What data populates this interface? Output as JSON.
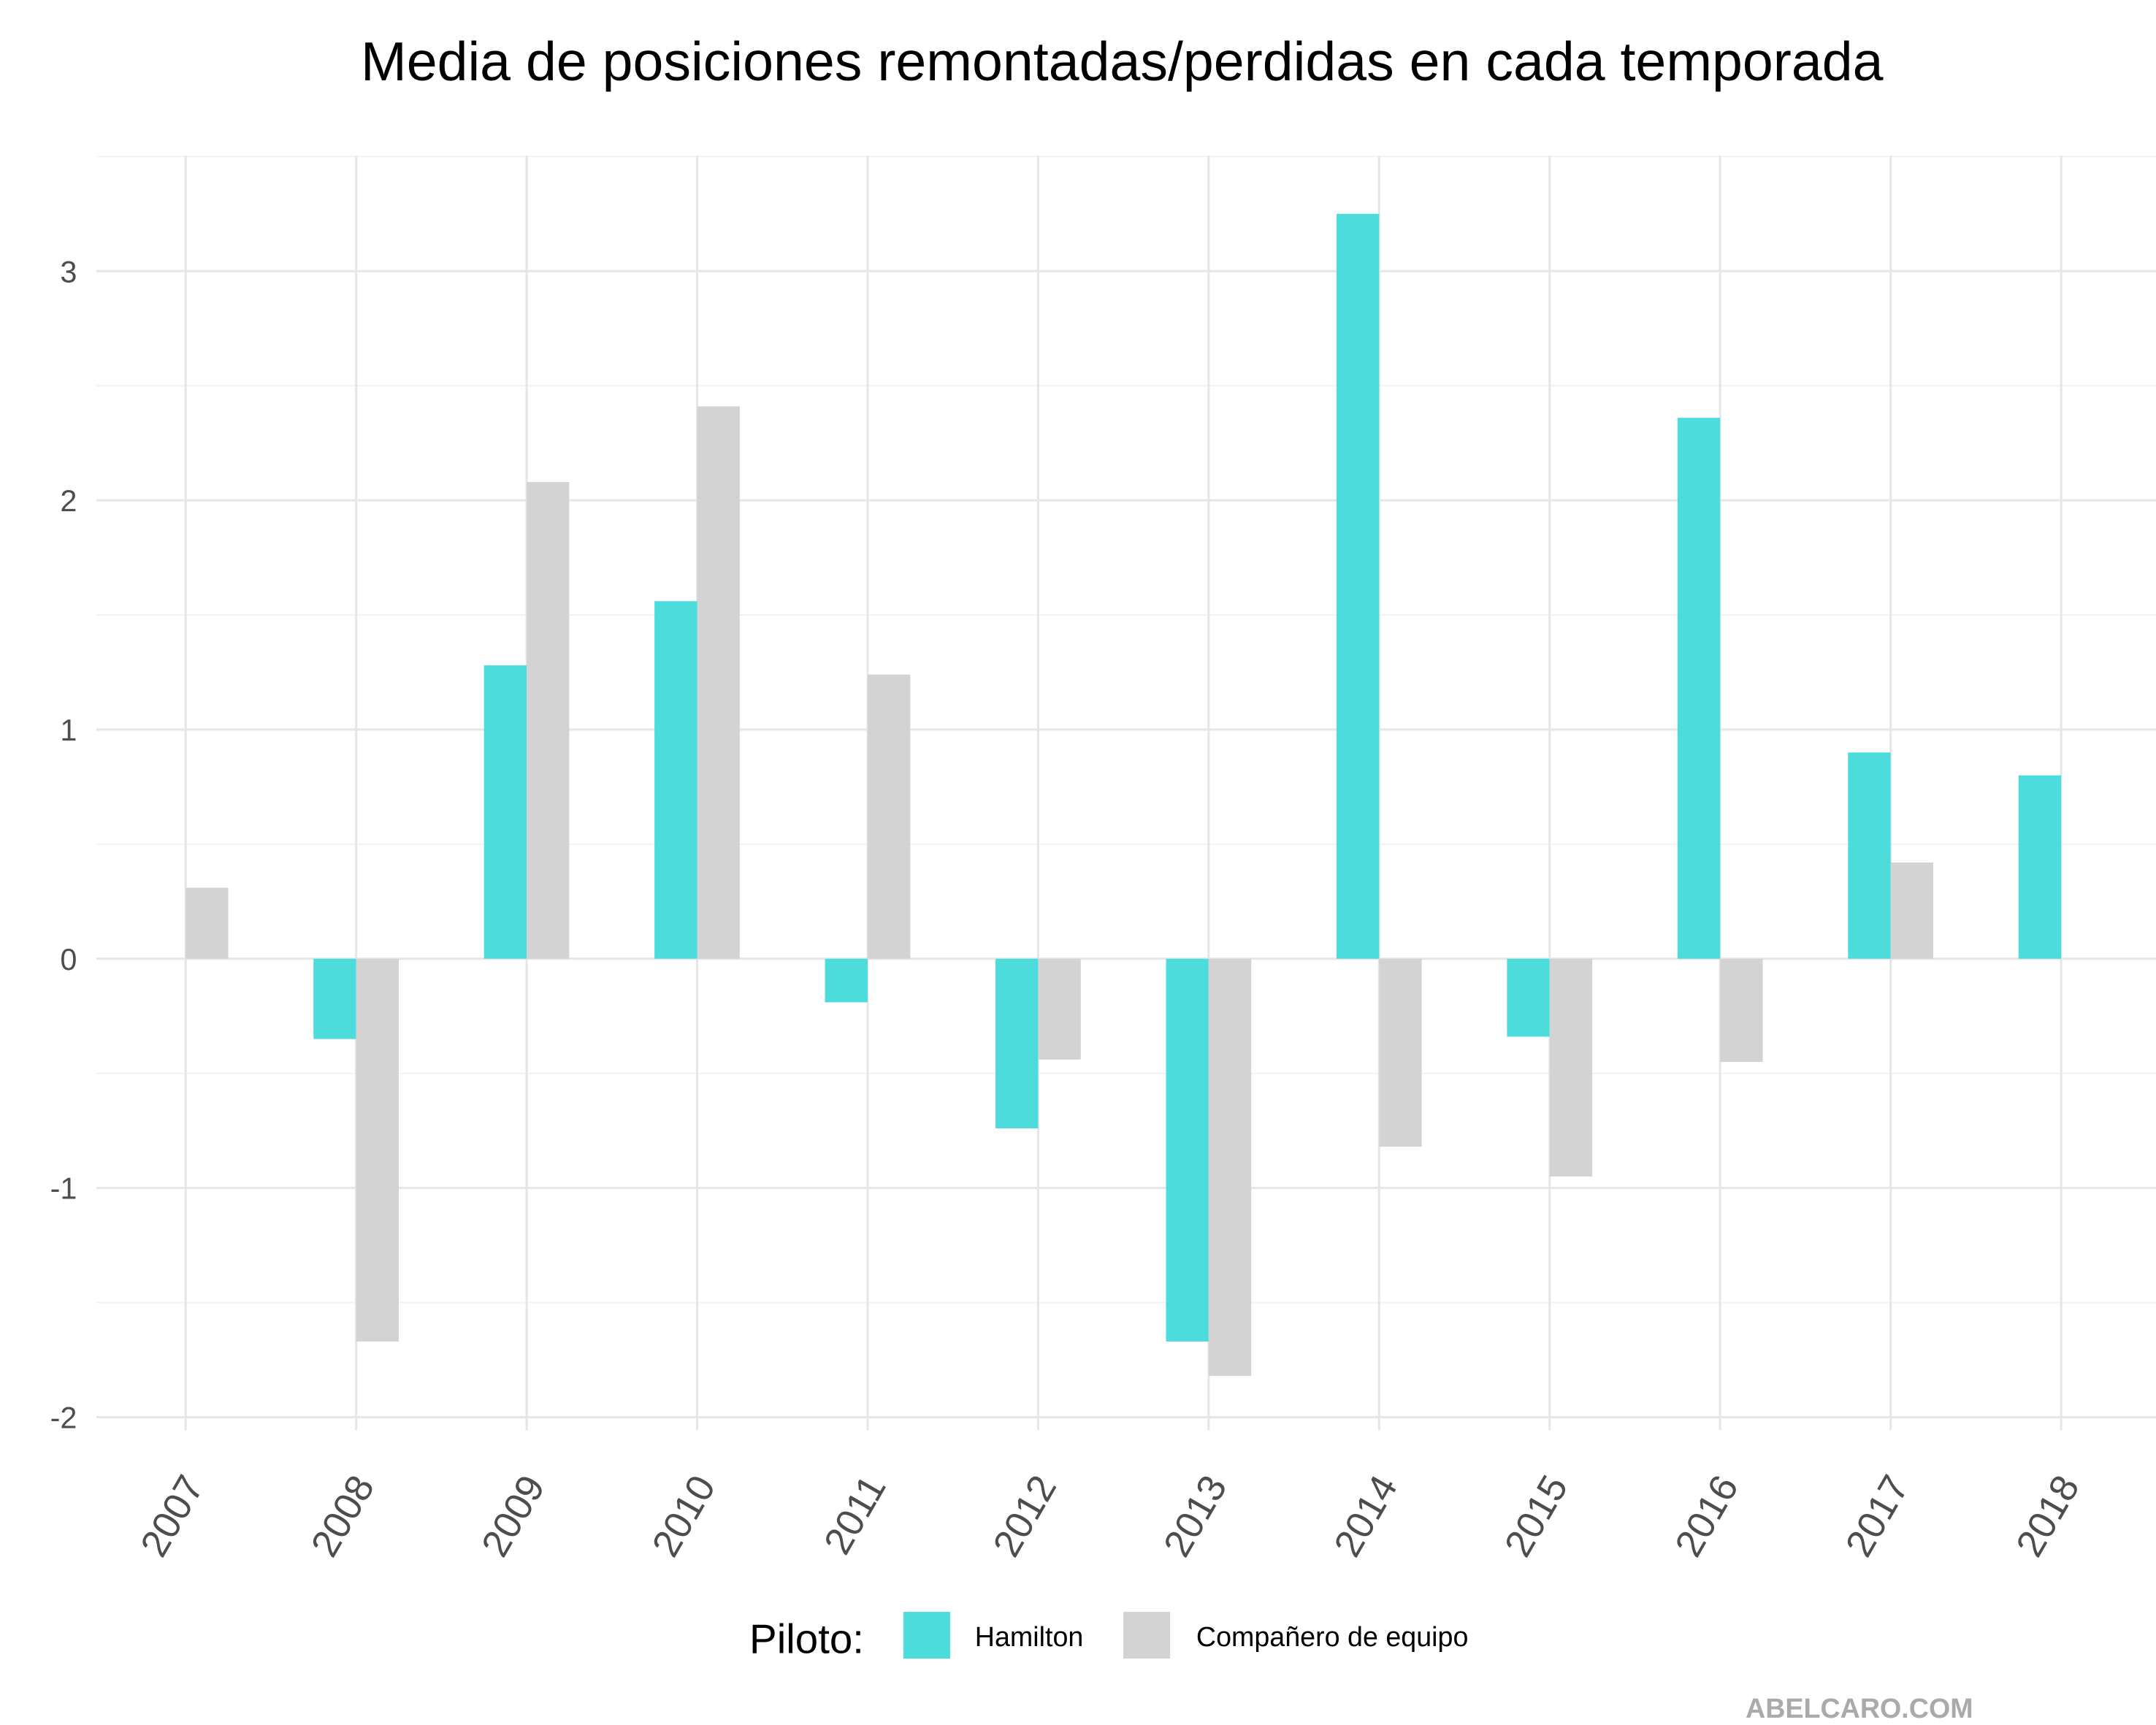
{
  "chart_data": {
    "type": "bar",
    "title": "Media de posiciones remontadas/perdidas en cada temporada",
    "xlabel": "",
    "ylabel": "",
    "categories": [
      "2007",
      "2008",
      "2009",
      "2010",
      "2011",
      "2012",
      "2013",
      "2014",
      "2015",
      "2016",
      "2017",
      "2018"
    ],
    "series": [
      {
        "name": "Hamilton",
        "color": "#4DDCDC",
        "values": [
          null,
          -0.35,
          1.28,
          1.56,
          -0.19,
          -0.74,
          -1.67,
          3.25,
          -0.34,
          2.36,
          0.9,
          0.8
        ]
      },
      {
        "name": "Compañero de equipo",
        "color": "#D3D3D3",
        "values": [
          0.31,
          -1.67,
          2.08,
          2.41,
          1.24,
          -0.44,
          -1.82,
          -0.82,
          -0.95,
          -0.45,
          0.42,
          null
        ]
      }
    ],
    "yticks": [
      "-2",
      "-1",
      "0",
      "1",
      "2",
      "3"
    ],
    "ylim": [
      -2.06,
      3.5
    ],
    "grid": true,
    "legend": {
      "title": "Piloto:",
      "position": "bottom"
    },
    "caption": "ABELCARO.COM"
  }
}
